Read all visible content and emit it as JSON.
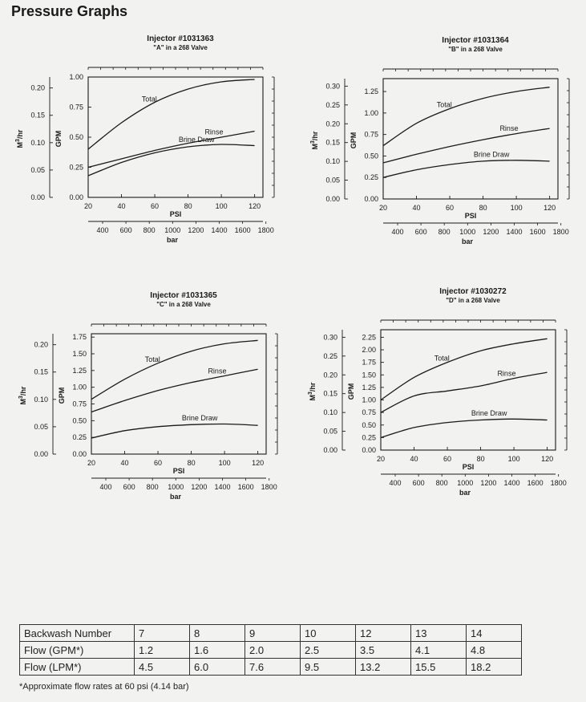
{
  "page": {
    "title": "Pressure Graphs"
  },
  "chart_data": [
    {
      "type": "line",
      "title": "Injector #1031363",
      "subtitle": "\"A\" in a 268 Valve",
      "xlabel": "PSI",
      "ylabel": "GPM",
      "xlim": [
        20,
        125
      ],
      "ylim": [
        0,
        1.0
      ],
      "xticks": [
        20,
        40,
        60,
        80,
        100,
        120
      ],
      "yticks": [
        0.0,
        0.25,
        0.5,
        0.75,
        1.0
      ],
      "ytick_labels": [
        "0.00",
        "0.25",
        "0.50",
        "0.75",
        "1.00"
      ],
      "x2label": "bar",
      "x2ticks": [
        "400",
        "600",
        "800",
        "1000",
        "1200",
        "1400",
        "1600",
        "1800"
      ],
      "y2label": "M3/hr",
      "y2ticks": [
        "0.00",
        "0.05",
        "0.10",
        "0.15",
        "0.20"
      ],
      "x": [
        20,
        40,
        60,
        80,
        100,
        120
      ],
      "series": [
        {
          "name": "Total",
          "values": [
            0.4,
            0.62,
            0.79,
            0.9,
            0.96,
            0.98
          ]
        },
        {
          "name": "Rinse",
          "values": [
            0.25,
            0.32,
            0.39,
            0.45,
            0.5,
            0.55
          ]
        },
        {
          "name": "Brine Draw",
          "values": [
            0.18,
            0.29,
            0.37,
            0.42,
            0.44,
            0.43
          ]
        }
      ]
    },
    {
      "type": "line",
      "title": "Injector #1031364",
      "subtitle": "\"B\" in a 268 Valve",
      "xlabel": "PSI",
      "ylabel": "GPM",
      "xlim": [
        20,
        125
      ],
      "ylim": [
        0,
        1.4
      ],
      "xticks": [
        20,
        40,
        60,
        80,
        100,
        120
      ],
      "yticks": [
        0.0,
        0.25,
        0.5,
        0.75,
        1.0,
        1.25
      ],
      "ytick_labels": [
        "0.00",
        "0.25",
        "0.50",
        "0.75",
        "1.00",
        "1.25"
      ],
      "x2label": "bar",
      "x2ticks": [
        "400",
        "600",
        "800",
        "1000",
        "1200",
        "1400",
        "1600",
        "1800"
      ],
      "y2label": "M3/hr",
      "y2ticks": [
        "0.00",
        "0.05",
        "0.10",
        "0.15",
        "0.20",
        "0.25",
        "0.30"
      ],
      "x": [
        20,
        40,
        60,
        80,
        100,
        120
      ],
      "series": [
        {
          "name": "Total",
          "values": [
            0.62,
            0.88,
            1.05,
            1.17,
            1.25,
            1.3
          ]
        },
        {
          "name": "Rinse",
          "values": [
            0.42,
            0.52,
            0.61,
            0.69,
            0.76,
            0.82
          ]
        },
        {
          "name": "Brine Draw",
          "values": [
            0.25,
            0.34,
            0.4,
            0.44,
            0.45,
            0.44
          ]
        }
      ]
    },
    {
      "type": "line",
      "title": "Injector #1031365",
      "subtitle": "\"C\" in a 268 Valve",
      "xlabel": "PSI",
      "ylabel": "GPM",
      "xlim": [
        20,
        125
      ],
      "ylim": [
        0,
        1.8
      ],
      "xticks": [
        20,
        40,
        60,
        80,
        100,
        120
      ],
      "yticks": [
        0.0,
        0.25,
        0.5,
        0.75,
        1.0,
        1.25,
        1.5,
        1.75
      ],
      "ytick_labels": [
        "0.00",
        "0.25",
        "0.50",
        "0.75",
        "1.00",
        "1.25",
        "1.50",
        "1.75"
      ],
      "x2label": "bar",
      "x2ticks": [
        "400",
        "600",
        "800",
        "1000",
        "1200",
        "1400",
        "1600",
        "1800"
      ],
      "y2label": "M3/hr",
      "y2ticks": [
        "0.00",
        "0.05",
        "0.10",
        "0.15",
        "0.20"
      ],
      "x": [
        20,
        40,
        60,
        80,
        100,
        120
      ],
      "series": [
        {
          "name": "Total",
          "values": [
            0.82,
            1.12,
            1.36,
            1.54,
            1.65,
            1.7
          ]
        },
        {
          "name": "Rinse",
          "values": [
            0.63,
            0.8,
            0.95,
            1.07,
            1.17,
            1.27
          ]
        },
        {
          "name": "Brine Draw",
          "values": [
            0.24,
            0.35,
            0.41,
            0.44,
            0.45,
            0.43
          ]
        }
      ]
    },
    {
      "type": "line",
      "title": "Injector #1030272",
      "subtitle": "\"D\" in a 268 Valve",
      "xlabel": "PSI",
      "ylabel": "GPM",
      "xlim": [
        20,
        125
      ],
      "ylim": [
        0,
        2.4
      ],
      "xticks": [
        20,
        40,
        60,
        80,
        100,
        120
      ],
      "yticks": [
        0.0,
        0.25,
        0.5,
        0.75,
        1.0,
        1.25,
        1.5,
        1.75,
        2.0,
        2.25
      ],
      "ytick_labels": [
        "0.00",
        "0.25",
        "0.50",
        "0.75",
        "1.00",
        "1.25",
        "1.50",
        "1.75",
        "2.00",
        "2.25"
      ],
      "x2label": "bar",
      "x2ticks": [
        "400",
        "600",
        "800",
        "1000",
        "1200",
        "1400",
        "1600",
        "1800"
      ],
      "y2label": "M3/hr",
      "y2ticks": [
        "0.00",
        "0.05",
        "0.10",
        "0.15",
        "0.20",
        "0.25",
        "0.30"
      ],
      "x": [
        20,
        40,
        60,
        80,
        100,
        120
      ],
      "series": [
        {
          "name": "Total",
          "values": [
            1.0,
            1.45,
            1.75,
            1.98,
            2.12,
            2.22
          ]
        },
        {
          "name": "Rinse",
          "values": [
            0.75,
            1.08,
            1.18,
            1.28,
            1.43,
            1.55
          ]
        },
        {
          "name": "Brine Draw",
          "values": [
            0.25,
            0.45,
            0.55,
            0.6,
            0.62,
            0.6
          ]
        }
      ]
    }
  ],
  "table": {
    "rows": [
      {
        "label": "Backwash Number",
        "values": [
          "7",
          "8",
          "9",
          "10",
          "12",
          "13",
          "14"
        ]
      },
      {
        "label": "Flow (GPM*)",
        "values": [
          "1.2",
          "1.6",
          "2.0",
          "2.5",
          "3.5",
          "4.1",
          "4.8"
        ]
      },
      {
        "label": "Flow (LPM*)",
        "values": [
          "4.5",
          "6.0",
          "7.6",
          "9.5",
          "13.2",
          "15.5",
          "18.2"
        ]
      }
    ]
  },
  "footnote": "*Approximate flow rates at 60 psi (4.14 bar)"
}
